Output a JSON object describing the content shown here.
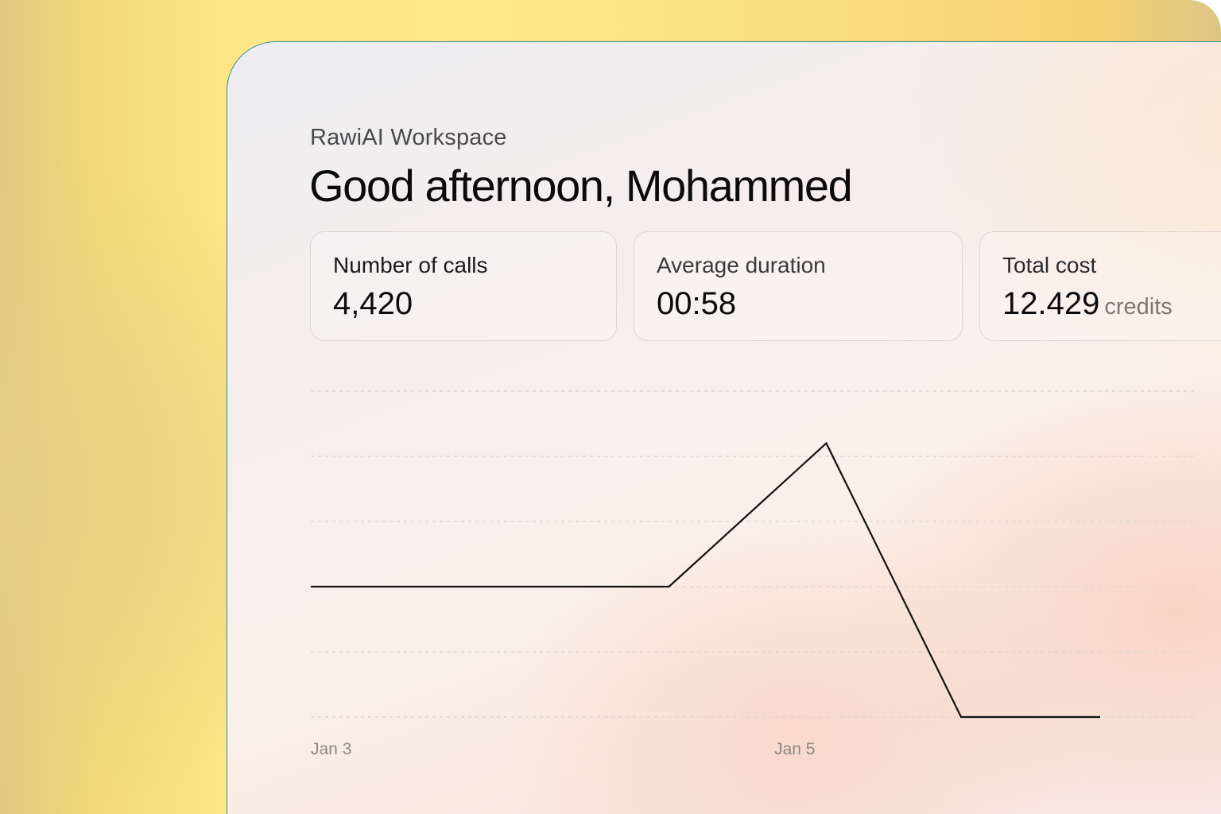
{
  "header": {
    "workspace": "RawiAI Workspace",
    "greeting": "Good afternoon, Mohammed"
  },
  "stats": {
    "calls": {
      "label": "Number of calls",
      "value": "4,420"
    },
    "duration": {
      "label": "Average duration",
      "value": "00:58"
    },
    "cost": {
      "label": "Total cost",
      "value": "12.429",
      "unit": "credits"
    }
  },
  "chart_data": {
    "type": "line",
    "x": [
      0,
      1,
      2,
      3,
      4,
      5,
      6,
      7
    ],
    "x_tick_labels": [
      {
        "x": 0,
        "label": "Jan 3"
      },
      {
        "x": 3.3,
        "label": "Jan 5"
      }
    ],
    "series": [
      {
        "values": [
          2,
          2,
          2,
          2,
          2,
          4.2,
          0,
          0
        ],
        "x": [
          0,
          1,
          2,
          2.5,
          2.55,
          3.67,
          4.63,
          5.62
        ]
      }
    ],
    "ylim": [
      0,
      5
    ],
    "grid": true,
    "line_color": "#111111",
    "grid_color": "#d9d4d2"
  },
  "colors": {
    "accent_border": "#3c8b9a",
    "text_primary": "#0b0b0d",
    "text_muted": "#7a7774"
  }
}
